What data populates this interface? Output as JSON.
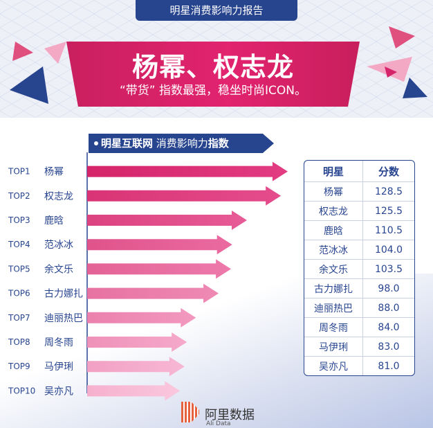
{
  "header": {
    "report_tab": "明星消费影响力报告",
    "headline": "杨幂、权志龙",
    "subline": "“带货” 指数最强，稳坐时尚ICON。"
  },
  "chart_title": {
    "bold_part": "明星互联网",
    "normal_part": " 消费影响力",
    "bold_tail": "指数"
  },
  "table": {
    "col_name": "明星",
    "col_score": "分数"
  },
  "colors": {
    "navy": "#27448f",
    "magenta": "#d5246a",
    "pink_light": "#f4b8d2"
  },
  "chart_data": {
    "type": "bar",
    "orientation": "horizontal",
    "categories": [
      "杨幂",
      "权志龙",
      "鹿晗",
      "范冰冰",
      "余文乐",
      "古力娜扎",
      "迪丽热巴",
      "周冬雨",
      "马伊琍",
      "吴亦凡"
    ],
    "ranks": [
      "TOP1",
      "TOP2",
      "TOP3",
      "TOP4",
      "TOP5",
      "TOP6",
      "TOP7",
      "TOP8",
      "TOP9",
      "TOP10"
    ],
    "values": [
      128.5,
      125.5,
      110.5,
      104.0,
      103.5,
      98.0,
      88.0,
      84.0,
      83.0,
      81.0
    ],
    "value_labels": [
      "128.5",
      "125.5",
      "110.5",
      "104.0",
      "103.5",
      "98.0",
      "88.0",
      "84.0",
      "83.0",
      "81.0"
    ],
    "title": "明星互联网 消费影响力指数",
    "xlabel": "",
    "ylabel": ""
  },
  "footer": {
    "logo_cn": "阿里数据",
    "logo_en": "Ali Data"
  }
}
